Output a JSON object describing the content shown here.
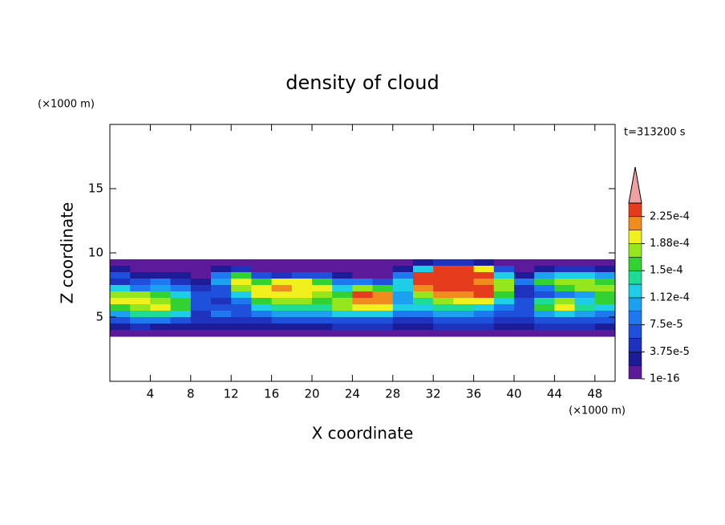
{
  "chart_data": {
    "type": "contour",
    "title": "density of cloud",
    "time_label": "t=313200 s",
    "x_label": "X coordinate",
    "y_label": "Z coordinate",
    "x_unit": "(×1000 m)",
    "y_unit": "(×1000 m)",
    "xlim": [
      0,
      50
    ],
    "ylim": [
      0,
      20
    ],
    "xticks": [
      4,
      8,
      12,
      16,
      20,
      24,
      28,
      32,
      36,
      40,
      44,
      48
    ],
    "yticks": [
      5,
      10,
      15
    ],
    "x": [
      1,
      3,
      5,
      7,
      9,
      11,
      13,
      15,
      17,
      19,
      21,
      23,
      25,
      27,
      29,
      31,
      33,
      35,
      37,
      39,
      41,
      43,
      45,
      47,
      49
    ],
    "z": [
      9.25,
      8.75,
      8.25,
      7.75,
      7.25,
      6.75,
      6.25,
      5.75,
      5.25,
      4.75,
      4.25,
      3.75
    ],
    "values": [
      [
        1e-05,
        1e-05,
        1e-05,
        1e-05,
        1e-05,
        1e-05,
        1e-05,
        1e-05,
        1e-05,
        1e-05,
        1e-05,
        1e-05,
        1e-05,
        1e-05,
        1e-05,
        3e-05,
        4.5e-05,
        4.5e-05,
        3e-05,
        1e-05,
        1e-05,
        1e-05,
        1e-05,
        1e-05,
        1e-05
      ],
      [
        3e-05,
        1e-05,
        1e-05,
        1e-05,
        1e-05,
        3e-05,
        4.5e-05,
        1e-05,
        1e-05,
        1e-05,
        1e-05,
        1e-05,
        1e-05,
        1e-05,
        3e-05,
        0.00012,
        0.000235,
        0.000235,
        0.000195,
        6.5e-05,
        1e-05,
        3e-05,
        4.5e-05,
        4.5e-05,
        3e-05
      ],
      [
        6.5e-05,
        3e-05,
        3e-05,
        3e-05,
        1e-05,
        8.5e-05,
        0.00016,
        6.5e-05,
        4.5e-05,
        6.5e-05,
        6.5e-05,
        3e-05,
        1e-05,
        1e-05,
        8.5e-05,
        0.000235,
        0.000235,
        0.000235,
        0.000235,
        0.00012,
        3e-05,
        0.0001,
        0.00012,
        0.00012,
        0.0001
      ],
      [
        4.5e-05,
        6.5e-05,
        8.5e-05,
        4.5e-05,
        3e-05,
        0.0001,
        0.000195,
        0.00016,
        0.000195,
        0.000195,
        0.00016,
        8.5e-05,
        8.5e-05,
        6.5e-05,
        0.00012,
        0.000235,
        0.000235,
        0.000235,
        0.000215,
        0.00018,
        8.5e-05,
        0.00016,
        0.00018,
        0.00018,
        0.00016
      ],
      [
        0.00012,
        8.5e-05,
        0.0001,
        8.5e-05,
        4.5e-05,
        6.5e-05,
        0.00018,
        0.000195,
        0.000215,
        0.000195,
        0.000195,
        0.00012,
        0.00018,
        0.00016,
        0.00012,
        0.000215,
        0.000235,
        0.000235,
        0.000235,
        0.00018,
        4.5e-05,
        8.5e-05,
        0.00016,
        0.00018,
        0.00018
      ],
      [
        0.00018,
        0.00018,
        0.00016,
        0.00012,
        6.5e-05,
        6.5e-05,
        0.00012,
        0.000195,
        0.000195,
        0.000195,
        0.00018,
        0.00016,
        0.000235,
        0.000215,
        0.0001,
        0.00018,
        0.000215,
        0.000215,
        0.000235,
        0.00016,
        4.5e-05,
        6.5e-05,
        8.5e-05,
        0.0001,
        0.00016
      ],
      [
        0.000195,
        0.000195,
        0.00018,
        0.00016,
        6.5e-05,
        4.5e-05,
        8.5e-05,
        0.00016,
        0.00018,
        0.00018,
        0.00016,
        0.00018,
        0.000215,
        0.000215,
        0.0001,
        0.00014,
        0.00018,
        0.000195,
        0.000195,
        0.00012,
        6.5e-05,
        0.00014,
        0.00018,
        0.00012,
        0.00016
      ],
      [
        0.00016,
        0.00018,
        0.000195,
        0.00016,
        6.5e-05,
        6.5e-05,
        6.5e-05,
        0.00012,
        0.00014,
        0.00014,
        0.00014,
        0.00018,
        0.000195,
        0.000195,
        0.00012,
        0.00012,
        0.00014,
        0.00014,
        0.00012,
        8.5e-05,
        6.5e-05,
        0.00016,
        0.000195,
        0.00014,
        0.00012
      ],
      [
        0.0001,
        0.00014,
        0.00014,
        0.00012,
        4.5e-05,
        8.5e-05,
        6.5e-05,
        8.5e-05,
        0.0001,
        0.0001,
        0.0001,
        0.00012,
        0.00012,
        0.00012,
        8.5e-05,
        8.5e-05,
        0.0001,
        0.0001,
        8.5e-05,
        6.5e-05,
        6.5e-05,
        0.0001,
        0.00012,
        0.0001,
        8.5e-05
      ],
      [
        6.5e-05,
        8.5e-05,
        8.5e-05,
        6.5e-05,
        4.5e-05,
        4.5e-05,
        4.5e-05,
        4.5e-05,
        6.5e-05,
        6.5e-05,
        6.5e-05,
        6.5e-05,
        6.5e-05,
        6.5e-05,
        4.5e-05,
        4.5e-05,
        6.5e-05,
        6.5e-05,
        6.5e-05,
        4.5e-05,
        4.5e-05,
        6.5e-05,
        6.5e-05,
        6.5e-05,
        6.5e-05
      ],
      [
        3e-05,
        4.5e-05,
        3e-05,
        3e-05,
        3e-05,
        3e-05,
        3e-05,
        3e-05,
        3e-05,
        3e-05,
        3e-05,
        4.5e-05,
        4.5e-05,
        4.5e-05,
        3e-05,
        3e-05,
        4.5e-05,
        4.5e-05,
        4.5e-05,
        3e-05,
        3e-05,
        4.5e-05,
        4.5e-05,
        4.5e-05,
        3e-05
      ],
      [
        1e-05,
        1e-05,
        1e-05,
        1e-05,
        1e-05,
        1e-05,
        1e-05,
        1e-05,
        1e-05,
        1e-05,
        1e-05,
        1e-05,
        1e-05,
        1e-05,
        1e-05,
        1e-05,
        1e-05,
        1e-05,
        1e-05,
        1e-05,
        1e-05,
        1e-05,
        1e-05,
        1e-05,
        1e-05
      ]
    ],
    "levels": [
      1e-16,
      1.875e-05,
      3.75e-05,
      5.625e-05,
      7.5e-05,
      9.375e-05,
      0.0001125,
      0.00013125,
      0.00015,
      0.00016875,
      0.0001875,
      0.00020625,
      0.000225,
      0.00024375
    ],
    "colors": [
      "#5a1a9a",
      "#1c1c96",
      "#1e32be",
      "#1e50dc",
      "#1e78f0",
      "#1ea0f0",
      "#1ecde6",
      "#1edc96",
      "#32d232",
      "#96e61e",
      "#f0f01e",
      "#f08c1e",
      "#e63c1e"
    ],
    "extend_color": "#f0a0a0",
    "colorbar_ticks": [
      {
        "value": 1e-16,
        "label": "1e-16"
      },
      {
        "value": 3.75e-05,
        "label": "3.75e-5"
      },
      {
        "value": 7.5e-05,
        "label": "7.5e-5"
      },
      {
        "value": 0.0001125,
        "label": "1.12e-4"
      },
      {
        "value": 0.00015,
        "label": "1.5e-4"
      },
      {
        "value": 0.0001875,
        "label": "1.88e-4"
      },
      {
        "value": 0.000225,
        "label": "2.25e-4"
      }
    ]
  }
}
